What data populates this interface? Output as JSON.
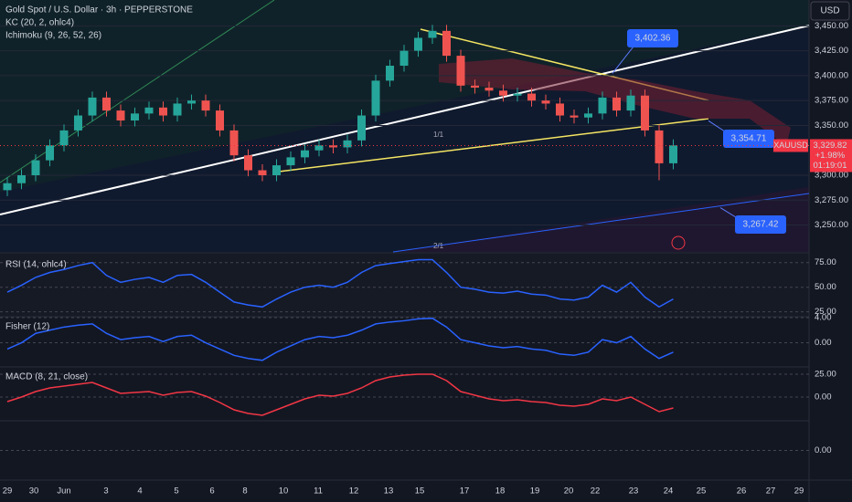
{
  "chart_data": [
    {
      "type": "candlestick",
      "title": "Gold Spot / U.S. Dollar · 3h · PEPPERSTONE",
      "indicators": [
        "KC (20, 2, ohlc4)",
        "Ichimoku (9, 26, 52, 26)"
      ],
      "currency": "USD",
      "symbol": "XAUUSD",
      "open": [
        3285,
        3292,
        3300,
        3315,
        3330,
        3345,
        3360,
        3378,
        3365,
        3355,
        3362,
        3368,
        3360,
        3372,
        3375,
        3365,
        3345,
        3320,
        3305,
        3300,
        3310,
        3318,
        3325,
        3330,
        3328,
        3335,
        3360,
        3395,
        3410,
        3425,
        3438,
        3445,
        3420,
        3390,
        3388,
        3385,
        3380,
        3382,
        3375,
        3372,
        3360,
        3358,
        3362,
        3378,
        3365,
        3380,
        3345,
        3312
      ],
      "high": [
        3298,
        3306,
        3321,
        3336,
        3351,
        3366,
        3384,
        3384,
        3371,
        3368,
        3374,
        3374,
        3378,
        3381,
        3381,
        3371,
        3351,
        3326,
        3311,
        3316,
        3324,
        3331,
        3336,
        3336,
        3341,
        3366,
        3401,
        3416,
        3431,
        3444,
        3451,
        3451,
        3426,
        3396,
        3394,
        3391,
        3388,
        3388,
        3381,
        3378,
        3366,
        3368,
        3384,
        3384,
        3386,
        3386,
        3351,
        3336
      ],
      "low": [
        3279,
        3286,
        3294,
        3309,
        3324,
        3339,
        3354,
        3359,
        3349,
        3349,
        3356,
        3354,
        3354,
        3366,
        3359,
        3339,
        3314,
        3299,
        3294,
        3294,
        3304,
        3312,
        3319,
        3322,
        3322,
        3329,
        3354,
        3389,
        3404,
        3419,
        3432,
        3414,
        3384,
        3382,
        3379,
        3374,
        3374,
        3369,
        3366,
        3354,
        3352,
        3352,
        3356,
        3359,
        3359,
        3339,
        3295,
        3306
      ],
      "close": [
        3292,
        3300,
        3315,
        3330,
        3345,
        3360,
        3378,
        3365,
        3355,
        3362,
        3368,
        3360,
        3372,
        3375,
        3365,
        3345,
        3320,
        3305,
        3300,
        3310,
        3318,
        3325,
        3330,
        3328,
        3335,
        3360,
        3395,
        3410,
        3425,
        3438,
        3445,
        3420,
        3390,
        3388,
        3385,
        3380,
        3382,
        3375,
        3372,
        3360,
        3358,
        3362,
        3378,
        3365,
        3380,
        3345,
        3312,
        3330
      ],
      "ylim": [
        3223,
        3476
      ],
      "yticks": [
        {
          "value": 3450,
          "label": "3,450.00"
        },
        {
          "value": 3425,
          "label": "3,425.00"
        },
        {
          "value": 3400,
          "label": "3,400.00"
        },
        {
          "value": 3375,
          "label": "3,375.00"
        },
        {
          "value": 3350,
          "label": "3,350.00"
        },
        {
          "value": 3300,
          "label": "3,300.00"
        },
        {
          "value": 3275,
          "label": "3,275.00"
        },
        {
          "value": 3250,
          "label": "3,250.00"
        }
      ],
      "annotations": [
        {
          "value": 3402.36,
          "label": "3,402.36"
        },
        {
          "value": 3354.71,
          "label": "3,354.71"
        },
        {
          "value": 3267.42,
          "label": "3,267.42"
        }
      ],
      "last_price": {
        "value": 3329.82,
        "label": "3,329.82"
      },
      "change": "+1.98%",
      "countdown": "01:19:01",
      "x_labels": [
        "29",
        "30",
        "Jun",
        "3",
        "4",
        "5",
        "6",
        "8",
        "10",
        "11",
        "12",
        "13",
        "15",
        "17",
        "18",
        "19",
        "20",
        "22",
        "23",
        "24",
        "25",
        "26",
        "27",
        "29"
      ],
      "up_color": "#26a69a",
      "down_color": "#ef5350"
    },
    {
      "type": "line",
      "title": "RSI (14, ohlc4)",
      "series": [
        {
          "color": "#2962ff",
          "values": [
            45,
            52,
            60,
            65,
            68,
            72,
            75,
            62,
            55,
            58,
            60,
            55,
            62,
            63,
            55,
            45,
            35,
            32,
            30,
            38,
            45,
            50,
            52,
            50,
            55,
            65,
            72,
            74,
            76,
            78,
            78,
            65,
            50,
            48,
            45,
            44,
            46,
            43,
            42,
            38,
            37,
            40,
            52,
            45,
            55,
            40,
            30,
            38
          ]
        }
      ],
      "ylim": [
        21,
        84
      ],
      "yticks": [
        {
          "value": 75,
          "label": "75.00"
        },
        {
          "value": 50,
          "label": "50.00"
        },
        {
          "value": 25,
          "label": "25.00"
        }
      ]
    },
    {
      "type": "line",
      "title": "Fisher (12)",
      "series": [
        {
          "color": "#2962ff",
          "values": [
            -1,
            0,
            1.5,
            2,
            2.5,
            2.8,
            3,
            1.5,
            0.5,
            0.8,
            1,
            0.2,
            1,
            1.2,
            0,
            -1,
            -2,
            -2.5,
            -2.8,
            -1.5,
            -0.5,
            0.5,
            1,
            0.8,
            1.2,
            2,
            3,
            3.3,
            3.5,
            3.8,
            3.9,
            2.5,
            0.5,
            0,
            -0.5,
            -0.8,
            -0.6,
            -1,
            -1.2,
            -1.8,
            -2,
            -1.5,
            0.5,
            0,
            1,
            -1,
            -2.5,
            -1.5
          ]
        }
      ],
      "ylim": [
        -3.7,
        4
      ],
      "yticks": [
        {
          "value": 4,
          "label": "4.00"
        },
        {
          "value": 0,
          "label": "0.00"
        }
      ]
    },
    {
      "type": "line",
      "title": "MACD (8, 21, close)",
      "series": [
        {
          "color": "#f23645",
          "values": [
            -5,
            0,
            6,
            10,
            12,
            14,
            16,
            10,
            4,
            5,
            6,
            2,
            5,
            6,
            1,
            -6,
            -14,
            -18,
            -20,
            -14,
            -8,
            -2,
            2,
            1,
            4,
            10,
            18,
            22,
            24,
            25,
            25,
            18,
            6,
            2,
            -2,
            -4,
            -3,
            -5,
            -6,
            -9,
            -10,
            -8,
            -2,
            -4,
            0,
            -8,
            -16,
            -12
          ]
        }
      ],
      "ylim": [
        -25,
        32
      ],
      "yticks": [
        {
          "value": 25,
          "label": "25.00"
        },
        {
          "value": 0,
          "label": "0.00"
        }
      ]
    },
    {
      "type": "empty",
      "yticks": [
        {
          "value": 0,
          "label": "0.00"
        }
      ]
    }
  ]
}
